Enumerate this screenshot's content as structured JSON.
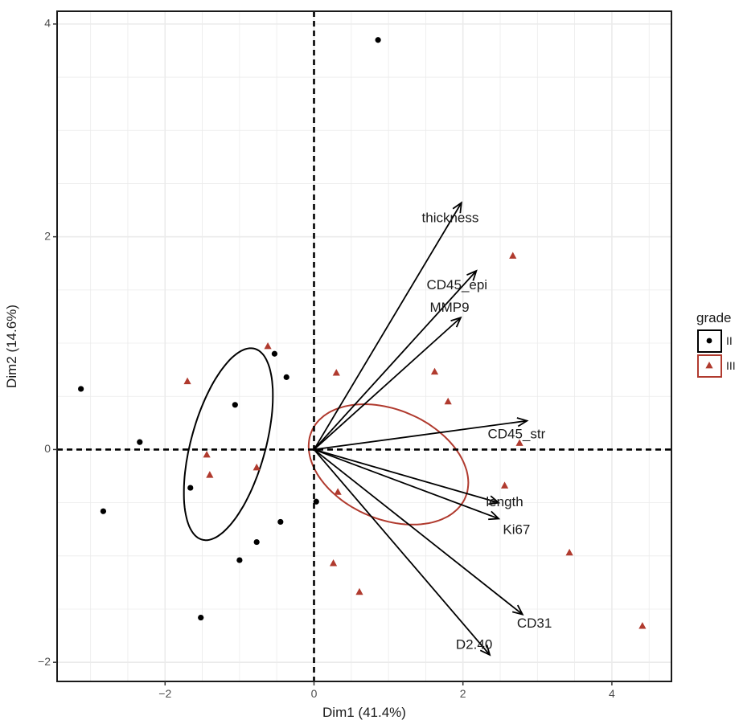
{
  "chart_data": {
    "type": "scatter",
    "xlabel": "Dim1 (41.4%)",
    "ylabel": "Dim2 (14.6%)",
    "xlim": [
      -3.45,
      4.8
    ],
    "ylim": [
      -2.18,
      4.12
    ],
    "xticks": [
      -2,
      0,
      2,
      4
    ],
    "yticks": [
      -2,
      0,
      2,
      4
    ],
    "xtick_labels": [
      "−2",
      "0",
      "2",
      "4"
    ],
    "ytick_labels": [
      "−2",
      "0",
      "2",
      "4"
    ],
    "grid": true,
    "legend": {
      "title": "grade",
      "position": "right",
      "entries": [
        {
          "label": "II",
          "shape": "circle",
          "color": "#000000"
        },
        {
          "label": "III",
          "shape": "triangle",
          "color": "#b03a2e"
        }
      ]
    },
    "series": [
      {
        "name": "II",
        "color": "#000000",
        "shape": "circle",
        "points": [
          {
            "x": 0.86,
            "y": 3.85
          },
          {
            "x": -3.13,
            "y": 0.57
          },
          {
            "x": -2.34,
            "y": 0.07
          },
          {
            "x": -0.53,
            "y": 0.9
          },
          {
            "x": -0.37,
            "y": 0.68
          },
          {
            "x": -1.06,
            "y": 0.42
          },
          {
            "x": -1.66,
            "y": -0.36
          },
          {
            "x": -2.83,
            "y": -0.58
          },
          {
            "x": 0.03,
            "y": -0.49
          },
          {
            "x": -0.45,
            "y": -0.68
          },
          {
            "x": -0.77,
            "y": -0.87
          },
          {
            "x": -1.0,
            "y": -1.04
          },
          {
            "x": -1.52,
            "y": -1.58
          }
        ]
      },
      {
        "name": "III",
        "color": "#b03a2e",
        "shape": "triangle",
        "points": [
          {
            "x": 2.67,
            "y": 1.82
          },
          {
            "x": -0.62,
            "y": 0.97
          },
          {
            "x": -1.7,
            "y": 0.64
          },
          {
            "x": 0.3,
            "y": 0.72
          },
          {
            "x": 1.62,
            "y": 0.73
          },
          {
            "x": 1.8,
            "y": 0.45
          },
          {
            "x": -1.44,
            "y": -0.05
          },
          {
            "x": -1.4,
            "y": -0.24
          },
          {
            "x": -0.77,
            "y": -0.17
          },
          {
            "x": 2.76,
            "y": 0.06
          },
          {
            "x": 0.32,
            "y": -0.4
          },
          {
            "x": 2.56,
            "y": -0.34
          },
          {
            "x": 0.26,
            "y": -1.07
          },
          {
            "x": 0.61,
            "y": -1.34
          },
          {
            "x": 3.43,
            "y": -0.97
          },
          {
            "x": 4.41,
            "y": -1.66
          }
        ]
      }
    ],
    "ellipses": [
      {
        "group": "II",
        "color": "#000000",
        "cx": -1.15,
        "cy": 0.05,
        "a": 0.97,
        "b": 0.48,
        "angle_deg": 65
      },
      {
        "group": "III",
        "color": "#b03a2e",
        "cx": 1.0,
        "cy": -0.14,
        "a": 1.09,
        "b": 0.53,
        "angle_deg": -12
      }
    ],
    "reference_lines": {
      "x": 0,
      "y": 0,
      "style": "dashed"
    },
    "variables": [
      {
        "name": "thickness",
        "x": 1.98,
        "y": 2.32,
        "label_x": 1.83,
        "label_y": 2.17
      },
      {
        "name": "CD45_epi",
        "x": 2.18,
        "y": 1.68,
        "label_x": 1.92,
        "label_y": 1.54
      },
      {
        "name": "MMP9",
        "x": 1.97,
        "y": 1.24,
        "label_x": 1.82,
        "label_y": 1.33
      },
      {
        "name": "CD45_str",
        "x": 2.86,
        "y": 0.27,
        "label_x": 2.72,
        "label_y": 0.14
      },
      {
        "name": "length",
        "x": 2.48,
        "y": -0.5,
        "label_x": 2.56,
        "label_y": -0.5
      },
      {
        "name": "Ki67",
        "x": 2.48,
        "y": -0.65,
        "label_x": 2.72,
        "label_y": -0.76
      },
      {
        "name": "CD31",
        "x": 2.8,
        "y": -1.55,
        "label_x": 2.96,
        "label_y": -1.64
      },
      {
        "name": "D2.40",
        "x": 2.36,
        "y": -1.93,
        "label_x": 2.15,
        "label_y": -1.84
      }
    ]
  }
}
